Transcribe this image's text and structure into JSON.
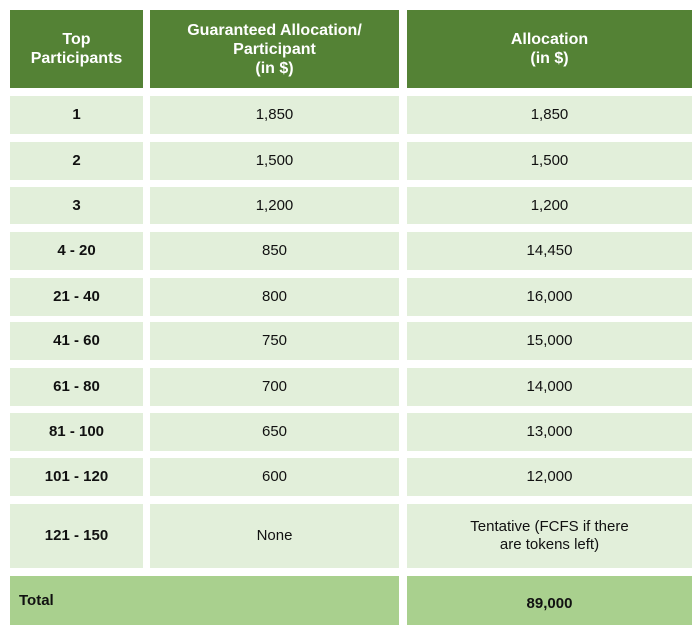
{
  "table": {
    "header": [
      "Top\nParticipants",
      "Guaranteed Allocation/\nParticipant\n(in $)",
      "Allocation\n(in $)"
    ],
    "rows": [
      [
        "1",
        "1,850",
        "1,850"
      ],
      [
        "2",
        "1,500",
        "1,500"
      ],
      [
        "3",
        "1,200",
        "1,200"
      ],
      [
        "4 - 20",
        "850",
        "14,450"
      ],
      [
        "21 - 40",
        "800",
        "16,000"
      ],
      [
        "41 - 60",
        "750",
        "15,000"
      ],
      [
        "61 - 80",
        "700",
        "14,000"
      ],
      [
        "81 - 100",
        "650",
        "13,000"
      ],
      [
        "101 - 120",
        "600",
        "12,000"
      ],
      [
        "121 - 150",
        "None",
        "Tentative (FCFS if there\nare tokens left)"
      ]
    ],
    "total": {
      "label": "Total",
      "value": "89,000"
    }
  }
}
